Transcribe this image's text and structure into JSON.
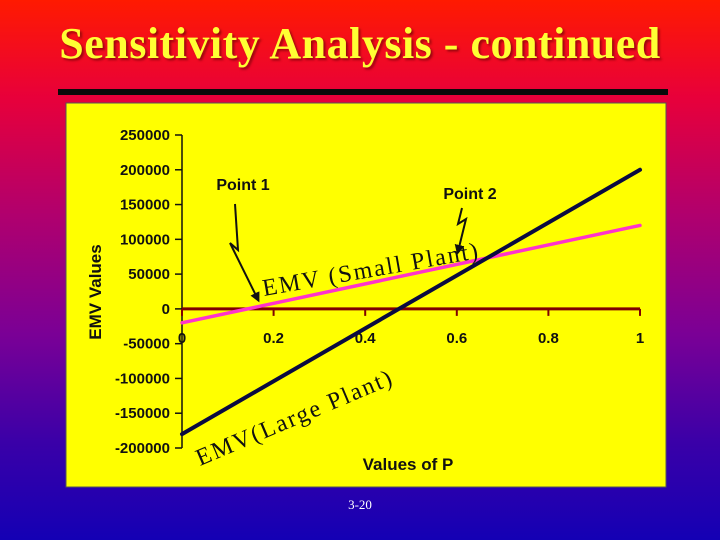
{
  "slide": {
    "title": "Sensitivity Analysis - continued",
    "number": "3-20"
  },
  "colors": {
    "plot_background": "#ffff00",
    "small_plant": "#ff33cc",
    "large_plant": "#0a0a40",
    "zero_line": "#800000",
    "title_text": "#ffff33"
  },
  "chart_data": {
    "type": "line",
    "xlabel": "Values of P",
    "ylabel": "EMV Values",
    "xlim": [
      0,
      1
    ],
    "ylim": [
      -200000,
      250000
    ],
    "x_ticks": [
      0,
      0.2,
      0.4,
      0.6,
      0.8,
      1
    ],
    "x_tick_labels": [
      "0",
      "0.2",
      "0.4",
      "0.6",
      "0.8",
      "1"
    ],
    "y_ticks": [
      250000,
      200000,
      150000,
      100000,
      50000,
      0,
      -50000,
      -100000,
      -150000,
      -200000
    ],
    "y_tick_labels": [
      "250000",
      "200000",
      "150000",
      "100000",
      "50000",
      "0",
      "-50000",
      "-100000",
      "-150000",
      "-200000"
    ],
    "series": [
      {
        "name": "EMV (Small Plant)",
        "x": [
          0,
          1
        ],
        "y": [
          -20000,
          120000
        ]
      },
      {
        "name": "EMV(Large Plant)",
        "x": [
          0,
          1
        ],
        "y": [
          -180000,
          200000
        ]
      }
    ],
    "annotations": [
      {
        "text": "Point 1",
        "x": 0.167,
        "y": 3333
      },
      {
        "text": "Point 2",
        "x": 0.615,
        "y": 66153
      }
    ],
    "legend": "none",
    "grid": false
  }
}
